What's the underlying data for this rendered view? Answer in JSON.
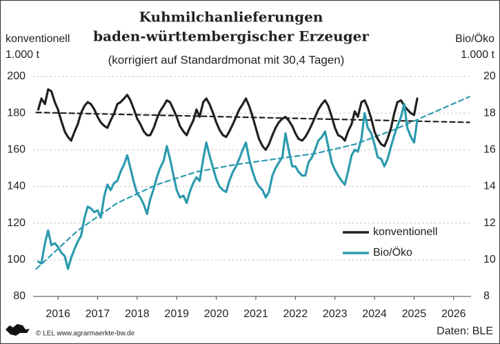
{
  "chart_data": {
    "type": "line",
    "title": [
      "Kuhmilchanlieferungen",
      "baden-württembergischer Erzeuger"
    ],
    "subtitle": "(korrigiert auf Standardmonat mit 30,4 Tagen)",
    "ylabel": [
      "konventionell",
      "1.000 t"
    ],
    "y2label": [
      "Bio/Öko",
      "1.000 t"
    ],
    "source": "Daten: BLE",
    "credit": "© LEL www.agrarmaerkte-bw.de",
    "grid": true,
    "legend": "lower right",
    "xlim": [
      2015.87,
      2026.94
    ],
    "xticks": [
      {
        "value": 2016.5,
        "label": "2016"
      },
      {
        "value": 2017.5,
        "label": "2017"
      },
      {
        "value": 2018.5,
        "label": "2018"
      },
      {
        "value": 2019.5,
        "label": "2019"
      },
      {
        "value": 2020.5,
        "label": "2020"
      },
      {
        "value": 2021.5,
        "label": "2021"
      },
      {
        "value": 2022.5,
        "label": "2022"
      },
      {
        "value": 2023.5,
        "label": "2023"
      },
      {
        "value": 2024.5,
        "label": "2024"
      },
      {
        "value": 2025.5,
        "label": "2025"
      },
      {
        "value": 2026.5,
        "label": "2026"
      }
    ],
    "ylim": [
      80,
      200
    ],
    "yticks": [
      80,
      100,
      120,
      140,
      160,
      180,
      200
    ],
    "y2lim": [
      8,
      20
    ],
    "y2ticks": [
      8,
      10,
      12,
      14,
      16,
      18,
      20
    ],
    "x": [
      2016.0,
      2016.08,
      2016.17,
      2016.25,
      2016.33,
      2016.42,
      2016.5,
      2016.58,
      2016.67,
      2016.75,
      2016.83,
      2016.92,
      2017.0,
      2017.08,
      2017.17,
      2017.25,
      2017.33,
      2017.42,
      2017.5,
      2017.58,
      2017.67,
      2017.75,
      2017.83,
      2017.92,
      2018.0,
      2018.08,
      2018.17,
      2018.25,
      2018.33,
      2018.42,
      2018.5,
      2018.58,
      2018.67,
      2018.75,
      2018.83,
      2018.92,
      2019.0,
      2019.08,
      2019.17,
      2019.25,
      2019.33,
      2019.42,
      2019.5,
      2019.58,
      2019.67,
      2019.75,
      2019.83,
      2019.92,
      2020.0,
      2020.08,
      2020.17,
      2020.25,
      2020.33,
      2020.42,
      2020.5,
      2020.58,
      2020.67,
      2020.75,
      2020.83,
      2020.92,
      2021.0,
      2021.08,
      2021.17,
      2021.25,
      2021.33,
      2021.42,
      2021.5,
      2021.58,
      2021.67,
      2021.75,
      2021.83,
      2021.92,
      2022.0,
      2022.08,
      2022.17,
      2022.25,
      2022.33,
      2022.42,
      2022.5,
      2022.58,
      2022.67,
      2022.75,
      2022.83,
      2022.92,
      2023.0,
      2023.08,
      2023.17,
      2023.25,
      2023.33,
      2023.42,
      2023.5,
      2023.58,
      2023.67,
      2023.75,
      2023.83,
      2023.92,
      2024.0,
      2024.08,
      2024.17,
      2024.25,
      2024.33,
      2024.42,
      2024.5,
      2024.58,
      2024.67,
      2024.75,
      2024.83,
      2024.92,
      2025.0,
      2025.08,
      2025.17,
      2025.25,
      2025.33,
      2025.42,
      2025.5,
      2025.58
    ],
    "series": [
      {
        "name": "konventionell",
        "color": "#231f20",
        "axis": "y",
        "values": [
          182,
          188,
          185,
          193,
          192,
          186,
          182,
          176,
          170,
          167,
          165,
          170,
          174,
          180,
          184,
          186,
          185,
          182,
          178,
          175,
          173,
          172,
          176,
          180,
          185,
          186,
          188,
          190,
          187,
          182,
          177,
          174,
          170,
          168,
          168,
          172,
          177,
          181,
          184,
          187,
          186,
          182,
          178,
          173,
          170,
          168,
          172,
          176,
          182,
          178,
          186,
          188,
          185,
          180,
          175,
          171,
          168,
          167,
          170,
          174,
          178,
          182,
          185,
          188,
          184,
          178,
          172,
          166,
          162,
          160,
          163,
          168,
          172,
          175,
          177,
          178,
          176,
          173,
          169,
          166,
          165,
          167,
          170,
          174,
          178,
          182,
          185,
          187,
          184,
          178,
          172,
          168,
          167,
          165,
          170,
          174,
          181,
          178,
          186,
          187,
          183,
          177,
          170,
          166,
          163,
          162,
          166,
          172,
          180,
          186,
          187,
          184,
          182,
          180,
          179,
          188
        ]
      },
      {
        "name": "Bio/Öko",
        "color": "#2b9aae",
        "axis": "y2",
        "values": [
          9.9,
          9.8,
          10.9,
          11.6,
          10.8,
          10.9,
          10.7,
          10.4,
          10.2,
          9.5,
          10.1,
          10.6,
          11.0,
          11.3,
          12.3,
          12.9,
          12.8,
          12.6,
          12.7,
          12.3,
          13.5,
          14.1,
          13.8,
          14.2,
          14.3,
          14.8,
          15.2,
          15.7,
          15.0,
          14.2,
          13.6,
          13.4,
          13.0,
          12.5,
          13.3,
          13.9,
          14.5,
          15.0,
          15.4,
          16.2,
          15.5,
          14.6,
          13.8,
          13.4,
          13.5,
          13.1,
          13.7,
          14.2,
          14.5,
          14.3,
          15.5,
          16.4,
          15.7,
          15.0,
          14.4,
          14.0,
          13.8,
          13.7,
          14.3,
          14.8,
          15.1,
          15.5,
          16.0,
          16.4,
          15.5,
          14.8,
          14.3,
          14.0,
          13.8,
          13.4,
          13.7,
          14.6,
          15.0,
          15.3,
          15.6,
          16.9,
          16.0,
          15.1,
          15.1,
          14.8,
          14.6,
          14.6,
          15.3,
          15.6,
          16.0,
          16.5,
          16.7,
          17.0,
          16.2,
          15.3,
          14.9,
          14.6,
          14.3,
          14.1,
          14.8,
          15.7,
          16.0,
          15.9,
          16.6,
          18.0,
          17.2,
          16.9,
          16.3,
          15.6,
          15.5,
          15.1,
          15.5,
          16.2,
          16.8,
          17.3,
          17.8,
          18.5,
          17.2,
          16.7,
          16.4,
          17.6
        ]
      }
    ],
    "trend_lines": [
      {
        "color": "#231f20",
        "axis": "y",
        "x": [
          2015.95,
          2026.9
        ],
        "values": [
          180.4,
          175.0
        ]
      },
      {
        "color": "#2b9aae",
        "axis": "y2",
        "x": [
          2015.95,
          2017,
          2018,
          2019,
          2020,
          2021,
          2022,
          2023,
          2024,
          2025,
          2026.9
        ],
        "values": [
          9.5,
          11.6,
          13.1,
          14.1,
          14.8,
          15.2,
          15.5,
          15.8,
          16.3,
          17.1,
          18.9
        ]
      }
    ]
  }
}
